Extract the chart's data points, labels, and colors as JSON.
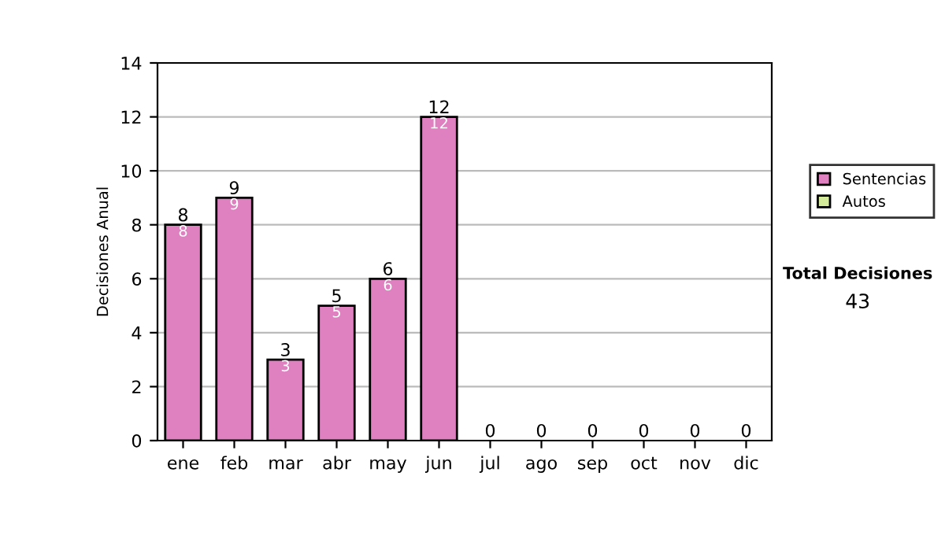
{
  "chart_data": {
    "type": "bar",
    "stacked": true,
    "ylabel": "Decisiones Anual",
    "categories": [
      "ene",
      "feb",
      "mar",
      "abr",
      "may",
      "jun",
      "jul",
      "ago",
      "sep",
      "oct",
      "nov",
      "dic"
    ],
    "series": [
      {
        "name": "Sentencias",
        "color": "#df80c0",
        "values": [
          8,
          9,
          3,
          5,
          6,
          12,
          0,
          0,
          0,
          0,
          0,
          0
        ],
        "value_labels": [
          "8",
          "9",
          "3",
          "5",
          "6",
          "12",
          null,
          null,
          null,
          null,
          null,
          null
        ]
      },
      {
        "name": "Autos",
        "color": "#d4eb9c",
        "values": [
          0,
          0,
          0,
          0,
          0,
          0,
          0,
          0,
          0,
          0,
          0,
          0
        ]
      }
    ],
    "totals": [
      "8",
      "9",
      "3",
      "5",
      "6",
      "12",
      "0",
      "0",
      "0",
      "0",
      "0",
      "0"
    ],
    "ylim": [
      0,
      14
    ],
    "yticks": [
      0,
      2,
      4,
      6,
      8,
      10,
      12,
      14
    ],
    "grid": "y",
    "legend": "right",
    "annotations": [
      "Total Decisiones",
      "43"
    ]
  }
}
